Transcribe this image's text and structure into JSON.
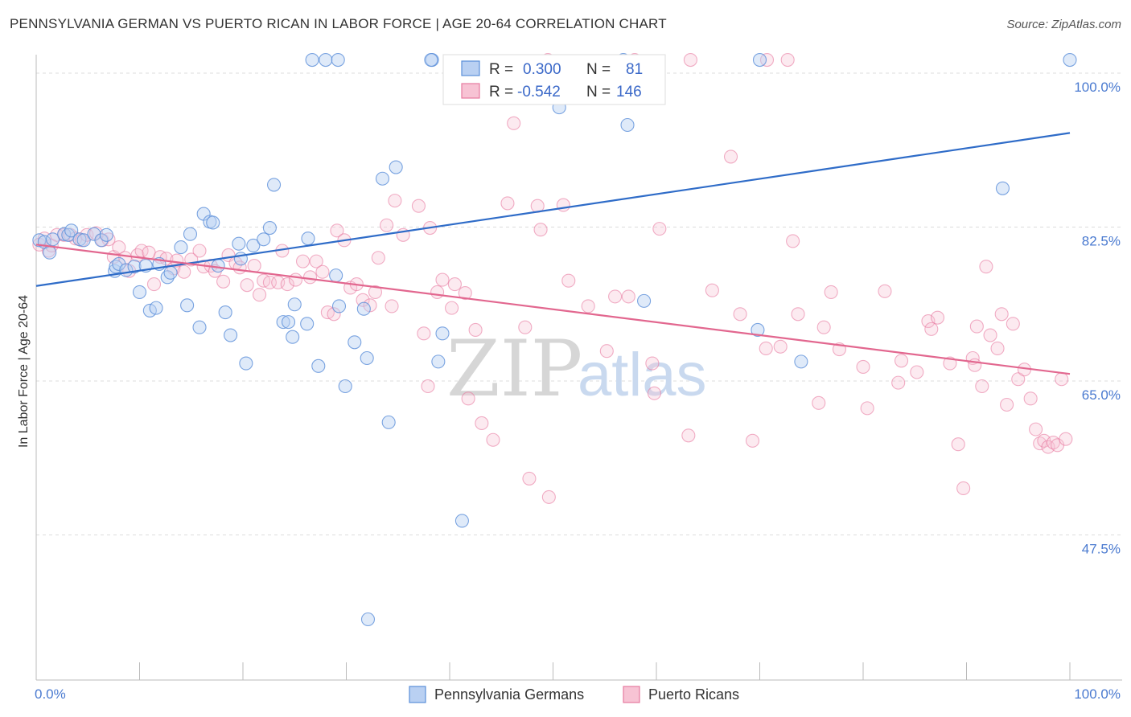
{
  "header": {
    "title": "PENNSYLVANIA GERMAN VS PUERTO RICAN IN LABOR FORCE | AGE 20-64 CORRELATION CHART",
    "source": "Source: ZipAtlas.com"
  },
  "watermark": {
    "zip": "ZIP",
    "atlas": "atlas"
  },
  "chart_data": {
    "type": "scatter",
    "ylabel": "In Labor Force | Age 20-64",
    "x_ticks": [
      "0.0%",
      "100.0%"
    ],
    "y_ticks": [
      "100.0%",
      "82.5%",
      "65.0%",
      "47.5%"
    ],
    "xlim": [
      0,
      100
    ],
    "ylim": [
      31,
      101
    ],
    "grid": true,
    "legend_position": "top-center",
    "colors": {
      "blue": "#5b8fd9",
      "blue_fill": "#b9d0f2",
      "pink": "#e77aa0",
      "pink_fill": "#f7c3d4",
      "blue_line": "#2f6cc8",
      "pink_line": "#e2678f"
    },
    "legend": [
      {
        "r_label": "R =",
        "r_value": "0.300",
        "n_label": "N =",
        "n_value": "81"
      },
      {
        "r_label": "R =",
        "r_value": "-0.542",
        "n_label": "N =",
        "n_value": "146"
      }
    ],
    "series": [
      {
        "name": "Pennsylvania Germans",
        "trend": [
          [
            0,
            75.8
          ],
          [
            100,
            93.2
          ]
        ],
        "points": [
          [
            0.3,
            81.0
          ],
          [
            0.8,
            80.8
          ],
          [
            1.3,
            79.6
          ],
          [
            1.6,
            81.1
          ],
          [
            2.7,
            81.7
          ],
          [
            3.1,
            81.6
          ],
          [
            3.4,
            82.1
          ],
          [
            4.2,
            81.1
          ],
          [
            4.6,
            81.0
          ],
          [
            5.6,
            81.7
          ],
          [
            6.3,
            81.0
          ],
          [
            6.8,
            81.6
          ],
          [
            7.6,
            77.5
          ],
          [
            7.7,
            78.0
          ],
          [
            8.0,
            78.3
          ],
          [
            8.7,
            77.6
          ],
          [
            9.5,
            78.0
          ],
          [
            10.6,
            78.1
          ],
          [
            10.0,
            75.1
          ],
          [
            11.0,
            73.0
          ],
          [
            11.6,
            73.3
          ],
          [
            11.9,
            78.3
          ],
          [
            12.7,
            76.8
          ],
          [
            13.0,
            77.3
          ],
          [
            14.0,
            80.2
          ],
          [
            14.6,
            73.6
          ],
          [
            14.9,
            81.7
          ],
          [
            15.8,
            71.1
          ],
          [
            16.2,
            84.0
          ],
          [
            16.8,
            83.1
          ],
          [
            17.1,
            83.0
          ],
          [
            17.6,
            78.1
          ],
          [
            18.3,
            72.8
          ],
          [
            18.8,
            70.2
          ],
          [
            19.6,
            80.6
          ],
          [
            19.8,
            78.9
          ],
          [
            20.3,
            67.0
          ],
          [
            21.0,
            80.4
          ],
          [
            22.0,
            81.1
          ],
          [
            22.6,
            82.4
          ],
          [
            23.0,
            87.3
          ],
          [
            23.9,
            71.7
          ],
          [
            24.4,
            71.7
          ],
          [
            24.8,
            70.0
          ],
          [
            25.0,
            73.7
          ],
          [
            26.3,
            81.2
          ],
          [
            26.2,
            71.5
          ],
          [
            27.3,
            66.7
          ],
          [
            29.0,
            77.0
          ],
          [
            29.3,
            73.5
          ],
          [
            29.9,
            64.4
          ],
          [
            30.8,
            69.4
          ],
          [
            31.7,
            73.2
          ],
          [
            32.0,
            67.6
          ],
          [
            33.5,
            88.0
          ],
          [
            34.1,
            60.3
          ],
          [
            34.8,
            89.3
          ],
          [
            26.7,
            101.5
          ],
          [
            28.0,
            101.5
          ],
          [
            29.2,
            101.5
          ],
          [
            38.3,
            101.5
          ],
          [
            38.9,
            67.2
          ],
          [
            39.3,
            70.4
          ],
          [
            41.2,
            49.1
          ],
          [
            32.1,
            37.9
          ],
          [
            50.6,
            96.1
          ],
          [
            57.2,
            94.1
          ],
          [
            70.0,
            101.5
          ],
          [
            58.8,
            74.1
          ],
          [
            69.8,
            70.8
          ],
          [
            74.0,
            67.2
          ],
          [
            93.5,
            86.9
          ],
          [
            100.0,
            101.5
          ],
          [
            38.2,
            101.5
          ],
          [
            56.8,
            101.5
          ]
        ]
      },
      {
        "name": "Puerto Ricans",
        "trend": [
          [
            0,
            80.5
          ],
          [
            100,
            65.8
          ]
        ],
        "points": [
          [
            0.3,
            80.5
          ],
          [
            0.8,
            81.2
          ],
          [
            1.2,
            79.8
          ],
          [
            1.5,
            80.4
          ],
          [
            2.0,
            81.6
          ],
          [
            2.7,
            81.6
          ],
          [
            3.3,
            81.6
          ],
          [
            3.8,
            81.2
          ],
          [
            4.4,
            81.0
          ],
          [
            4.9,
            81.6
          ],
          [
            5.8,
            81.8
          ],
          [
            6.4,
            81.0
          ],
          [
            7.0,
            81.1
          ],
          [
            7.5,
            79.1
          ],
          [
            8.0,
            80.2
          ],
          [
            8.6,
            79.0
          ],
          [
            9.0,
            77.5
          ],
          [
            9.8,
            79.3
          ],
          [
            10.2,
            79.8
          ],
          [
            10.9,
            79.6
          ],
          [
            11.4,
            76.0
          ],
          [
            12.0,
            79.1
          ],
          [
            12.6,
            78.9
          ],
          [
            13.3,
            77.8
          ],
          [
            13.6,
            78.7
          ],
          [
            14.3,
            77.4
          ],
          [
            15.0,
            78.8
          ],
          [
            15.8,
            79.8
          ],
          [
            16.2,
            78.0
          ],
          [
            16.9,
            78.1
          ],
          [
            17.3,
            77.5
          ],
          [
            18.1,
            76.3
          ],
          [
            18.6,
            79.3
          ],
          [
            19.3,
            78.4
          ],
          [
            19.7,
            77.9
          ],
          [
            20.4,
            75.9
          ],
          [
            21.1,
            78.1
          ],
          [
            21.6,
            74.8
          ],
          [
            22.0,
            76.4
          ],
          [
            22.6,
            76.2
          ],
          [
            23.4,
            76.2
          ],
          [
            23.8,
            79.8
          ],
          [
            24.3,
            76.0
          ],
          [
            25.1,
            76.5
          ],
          [
            25.8,
            78.6
          ],
          [
            26.5,
            76.8
          ],
          [
            27.1,
            78.6
          ],
          [
            27.7,
            77.4
          ],
          [
            28.2,
            72.8
          ],
          [
            28.8,
            72.6
          ],
          [
            29.1,
            82.1
          ],
          [
            29.8,
            81.0
          ],
          [
            30.4,
            75.6
          ],
          [
            31.0,
            76.0
          ],
          [
            31.6,
            74.2
          ],
          [
            32.3,
            73.6
          ],
          [
            32.8,
            75.1
          ],
          [
            33.1,
            79.0
          ],
          [
            33.9,
            82.7
          ],
          [
            34.4,
            73.5
          ],
          [
            34.7,
            85.5
          ],
          [
            35.5,
            81.6
          ],
          [
            37.0,
            84.9
          ],
          [
            37.5,
            70.4
          ],
          [
            37.9,
            64.4
          ],
          [
            38.1,
            82.4
          ],
          [
            38.8,
            75.1
          ],
          [
            39.3,
            76.5
          ],
          [
            40.2,
            73.3
          ],
          [
            40.5,
            76.0
          ],
          [
            41.5,
            75.0
          ],
          [
            41.8,
            63.0
          ],
          [
            42.5,
            70.8
          ],
          [
            43.1,
            60.2
          ],
          [
            44.2,
            58.3
          ],
          [
            45.6,
            85.2
          ],
          [
            46.2,
            94.3
          ],
          [
            47.3,
            71.1
          ],
          [
            47.7,
            53.9
          ],
          [
            48.5,
            84.9
          ],
          [
            48.8,
            82.2
          ],
          [
            49.6,
            51.8
          ],
          [
            51.0,
            85.0
          ],
          [
            51.5,
            76.4
          ],
          [
            53.4,
            73.5
          ],
          [
            55.2,
            68.4
          ],
          [
            56.0,
            74.6
          ],
          [
            57.3,
            74.6
          ],
          [
            59.6,
            67.0
          ],
          [
            59.8,
            63.6
          ],
          [
            60.3,
            82.3
          ],
          [
            63.1,
            58.8
          ],
          [
            65.4,
            75.3
          ],
          [
            67.2,
            90.5
          ],
          [
            68.1,
            72.6
          ],
          [
            69.3,
            58.2
          ],
          [
            70.6,
            68.7
          ],
          [
            72.0,
            68.9
          ],
          [
            73.2,
            80.9
          ],
          [
            73.7,
            72.6
          ],
          [
            75.7,
            62.5
          ],
          [
            76.2,
            71.1
          ],
          [
            76.9,
            75.1
          ],
          [
            77.7,
            68.6
          ],
          [
            80.0,
            66.6
          ],
          [
            80.4,
            61.9
          ],
          [
            82.1,
            75.2
          ],
          [
            83.4,
            64.8
          ],
          [
            83.7,
            67.3
          ],
          [
            85.2,
            66.0
          ],
          [
            86.3,
            71.8
          ],
          [
            86.6,
            70.9
          ],
          [
            87.2,
            72.2
          ],
          [
            88.4,
            67.0
          ],
          [
            89.2,
            57.8
          ],
          [
            89.7,
            52.8
          ],
          [
            90.6,
            67.6
          ],
          [
            90.8,
            66.8
          ],
          [
            91.0,
            71.2
          ],
          [
            91.9,
            78.0
          ],
          [
            91.5,
            64.4
          ],
          [
            92.3,
            70.2
          ],
          [
            93.0,
            68.7
          ],
          [
            93.4,
            72.6
          ],
          [
            93.9,
            62.3
          ],
          [
            94.5,
            71.5
          ],
          [
            95.0,
            65.2
          ],
          [
            95.6,
            66.3
          ],
          [
            96.2,
            63.0
          ],
          [
            96.7,
            59.5
          ],
          [
            97.1,
            57.9
          ],
          [
            97.5,
            58.2
          ],
          [
            97.9,
            57.5
          ],
          [
            98.4,
            58.0
          ],
          [
            98.8,
            57.7
          ],
          [
            99.2,
            65.2
          ],
          [
            99.6,
            58.4
          ],
          [
            72.7,
            101.5
          ],
          [
            57.9,
            101.5
          ],
          [
            49.5,
            101.5
          ],
          [
            63.3,
            101.5
          ],
          [
            70.7,
            101.5
          ]
        ]
      }
    ]
  }
}
